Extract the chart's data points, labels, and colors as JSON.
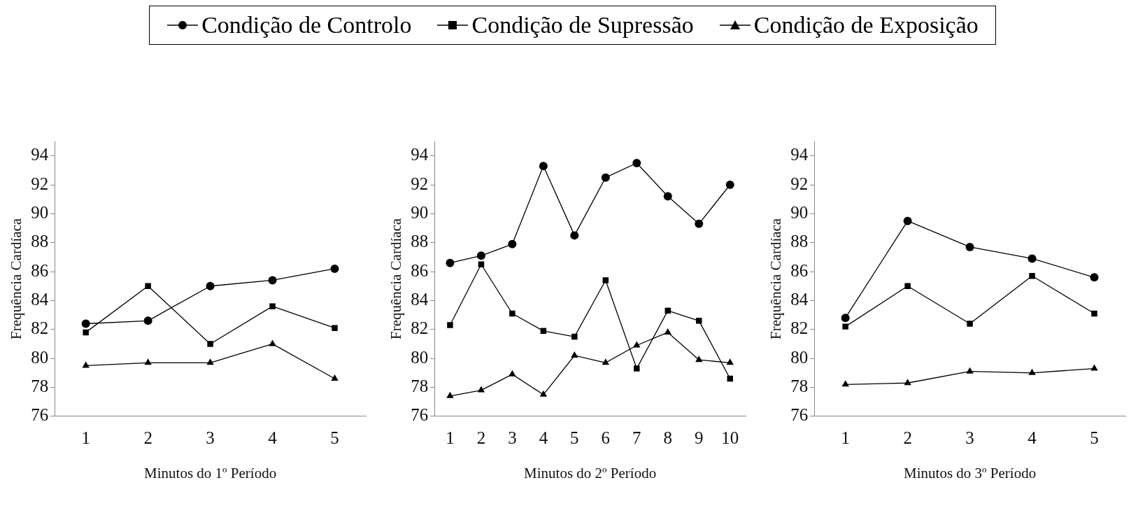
{
  "chart_data": [
    {
      "type": "line",
      "xlabel": "Minutos do 1º Período",
      "ylabel": "Frequência Cardíaca",
      "categories": [
        "1",
        "2",
        "3",
        "4",
        "5"
      ],
      "ylim": [
        76,
        95
      ],
      "yticks": [
        76,
        78,
        80,
        82,
        84,
        86,
        88,
        90,
        92,
        94
      ],
      "grid": false,
      "legend": "top",
      "series": [
        {
          "name": "Condição de Controlo",
          "color": "#000000",
          "marker": "circle",
          "values": [
            82.4,
            82.6,
            85.0,
            85.4,
            86.2
          ]
        },
        {
          "name": "Condição de Supressão",
          "color": "#000000",
          "marker": "square",
          "values": [
            81.8,
            85.0,
            81.0,
            83.6,
            82.1
          ]
        },
        {
          "name": "Condição de Exposição",
          "color": "#000000",
          "marker": "triangle",
          "values": [
            79.5,
            79.7,
            79.7,
            81.0,
            78.6
          ]
        }
      ]
    },
    {
      "type": "line",
      "xlabel": "Minutos do 2º Período",
      "ylabel": "Frequência Cardíaca",
      "categories": [
        "1",
        "2",
        "3",
        "4",
        "5",
        "6",
        "7",
        "8",
        "9",
        "10"
      ],
      "ylim": [
        76,
        95
      ],
      "yticks": [
        76,
        78,
        80,
        82,
        84,
        86,
        88,
        90,
        92,
        94
      ],
      "grid": false,
      "series": [
        {
          "color": "#000000",
          "marker": "circle",
          "values": [
            86.6,
            87.1,
            87.9,
            93.3,
            88.5,
            92.5,
            93.5,
            91.2,
            89.3,
            92.0
          ]
        },
        {
          "color": "#000000",
          "marker": "square",
          "values": [
            82.3,
            86.5,
            83.1,
            81.9,
            81.5,
            85.4,
            79.3,
            83.3,
            82.6,
            78.6
          ]
        },
        {
          "color": "#000000",
          "marker": "triangle",
          "values": [
            77.4,
            77.8,
            78.9,
            77.5,
            80.2,
            79.7,
            80.9,
            81.8,
            79.9,
            79.7
          ]
        }
      ]
    },
    {
      "type": "line",
      "xlabel": "Minutos do 3º Período",
      "ylabel": "Frequência Cardíaca",
      "categories": [
        "1",
        "2",
        "3",
        "4",
        "5"
      ],
      "ylim": [
        76,
        95
      ],
      "yticks": [
        76,
        78,
        80,
        82,
        84,
        86,
        88,
        90,
        92,
        94
      ],
      "grid": false,
      "series": [
        {
          "color": "#000000",
          "marker": "circle",
          "values": [
            82.8,
            89.5,
            87.7,
            86.9,
            85.6
          ]
        },
        {
          "color": "#000000",
          "marker": "square",
          "values": [
            82.2,
            85.0,
            82.4,
            85.7,
            83.1
          ]
        },
        {
          "color": "#000000",
          "marker": "triangle",
          "values": [
            78.2,
            78.3,
            79.1,
            79.0,
            79.3
          ]
        }
      ]
    }
  ]
}
